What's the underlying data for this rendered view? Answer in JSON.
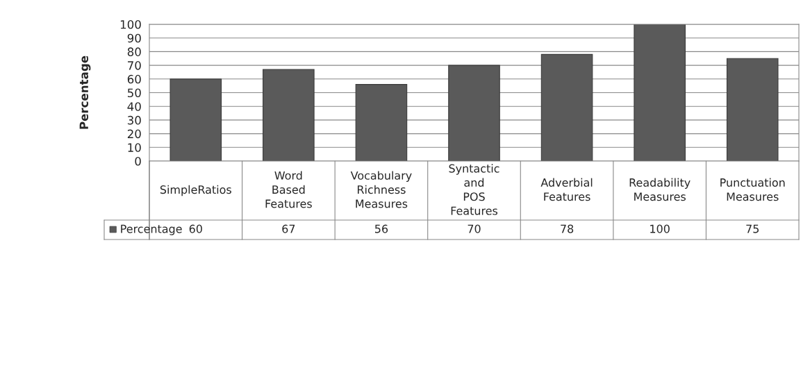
{
  "chart_data": {
    "type": "bar",
    "ylabel": "Percentage",
    "categories": [
      "SimpleRatios",
      "Word Based Features",
      "Vocabulary Richness Measures",
      "Syntactic and POS Features",
      "Adverbial Features",
      "Readability Measures",
      "Punctuation Measures"
    ],
    "series": [
      {
        "name": "Percentage",
        "color": "#5a5a5a",
        "values": [
          60,
          67,
          56,
          70,
          78,
          100,
          75
        ]
      }
    ],
    "ylim": [
      0,
      100
    ],
    "yticks": [
      0,
      10,
      20,
      30,
      40,
      50,
      60,
      70,
      80,
      90,
      100
    ],
    "grid": "y",
    "data_labels": true,
    "legend": "bottom"
  }
}
